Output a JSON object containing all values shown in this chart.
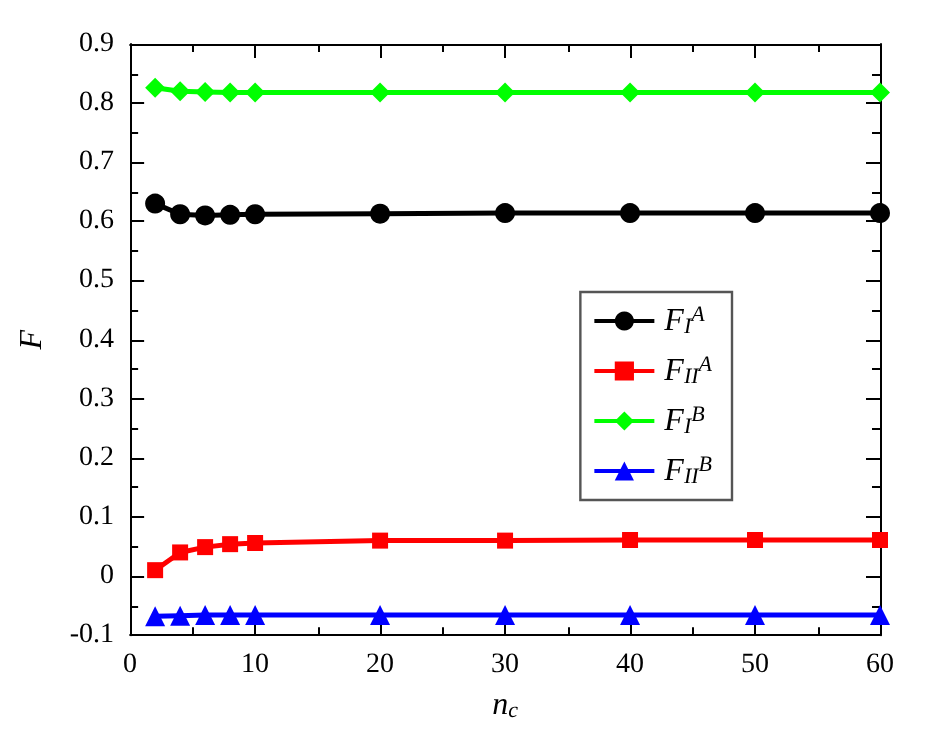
{
  "chart_data": {
    "type": "line",
    "xlabel": "n$_{c}$",
    "ylabel": "F",
    "x": [
      2,
      4,
      6,
      8,
      10,
      20,
      30,
      40,
      50,
      60
    ],
    "series": [
      {
        "name": "F$_{I}$$^{A}$",
        "color": "#000000",
        "marker": "circle",
        "values": [
          0.63,
          0.612,
          0.61,
          0.611,
          0.612,
          0.613,
          0.614,
          0.614,
          0.614,
          0.614
        ]
      },
      {
        "name": "F$_{II}$$^{A}$",
        "color": "#ff0000",
        "marker": "square",
        "values": [
          0.01,
          0.04,
          0.049,
          0.054,
          0.056,
          0.06,
          0.06,
          0.061,
          0.061,
          0.061
        ]
      },
      {
        "name": "F$_{I}$$^{B}$",
        "color": "#00ff00",
        "marker": "diamond",
        "values": [
          0.826,
          0.82,
          0.819,
          0.818,
          0.818,
          0.818,
          0.818,
          0.818,
          0.818,
          0.818
        ]
      },
      {
        "name": "F$_{II}$$^{B}$",
        "color": "#0000ff",
        "marker": "triangle",
        "values": [
          -0.068,
          -0.067,
          -0.066,
          -0.066,
          -0.066,
          -0.066,
          -0.066,
          -0.066,
          -0.066,
          -0.066
        ]
      }
    ],
    "xlim": [
      0,
      60
    ],
    "xticks": [
      0,
      10,
      20,
      30,
      40,
      50,
      60
    ],
    "ylim": [
      -0.1,
      0.9
    ],
    "yticks": [
      -0.1,
      0,
      0.1,
      0.2,
      0.3,
      0.4,
      0.5,
      0.6,
      0.7,
      0.8,
      0.9
    ],
    "grid": false,
    "legend": "right",
    "line_style": "solid"
  }
}
